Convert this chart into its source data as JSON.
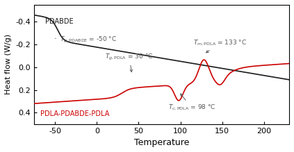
{
  "title": "",
  "xlabel": "Temperature",
  "ylabel": "Heat flow (W/g)",
  "xlim": [
    -75,
    230
  ],
  "ylim": [
    0.5,
    -0.55
  ],
  "xticks": [
    -50,
    0,
    50,
    100,
    150,
    200
  ],
  "yticks": [
    0.4,
    0.2,
    0.0,
    -0.2,
    -0.4
  ],
  "background_color": "#ffffff",
  "label_PDABDE": "PDABDE",
  "label_triblock": "PDLA-PDABDE-PDLA",
  "line_color_black": "#1a1a1a",
  "line_color_red": "#cc0000",
  "annotation_color": "#555555",
  "ann_fontsize": 6.5
}
